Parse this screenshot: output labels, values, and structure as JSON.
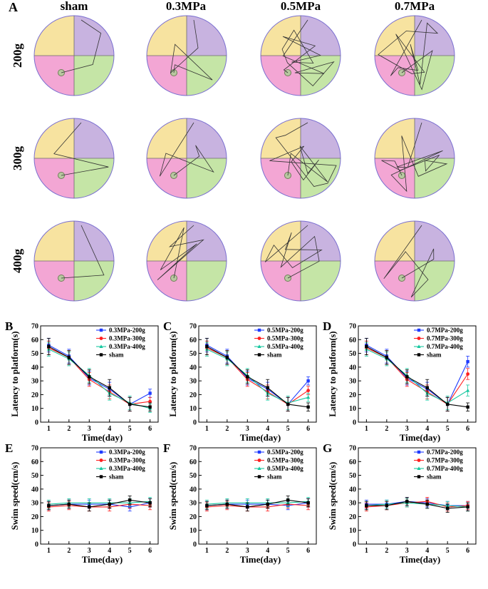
{
  "panel_a": {
    "letter": "A",
    "columns": [
      "sham",
      "0.3MPa",
      "0.5MPa",
      "0.7MPa"
    ],
    "rows": [
      "200g",
      "300g",
      "400g"
    ],
    "quadrant_colors": {
      "nw": "#f7e3a0",
      "ne": "#c8b3e0",
      "sw": "#f3a6d4",
      "se": "#c5e5a6"
    },
    "rim_color": "#7a6fd0"
  },
  "chart_data": [
    {
      "type": "line",
      "letter": "B",
      "ylabel": "Latency to platform(s)",
      "xlabel": "Time(day)",
      "x": [
        1,
        2,
        3,
        4,
        5,
        6
      ],
      "ylim": [
        0,
        70
      ],
      "yticks": [
        0,
        10,
        20,
        30,
        40,
        50,
        60,
        70
      ],
      "series": [
        {
          "name": "0.3MPa-200g",
          "color": "#1f3bff",
          "marker": "square",
          "values": [
            56,
            48,
            32,
            24,
            13,
            21
          ],
          "err": [
            5,
            5,
            5,
            5,
            5,
            3
          ]
        },
        {
          "name": "0.3MPa-300g",
          "color": "#ff1f1f",
          "marker": "circle",
          "values": [
            54,
            47,
            31,
            22,
            13,
            15
          ],
          "err": [
            5,
            5,
            5,
            5,
            5,
            3
          ]
        },
        {
          "name": "0.3MPa-400g",
          "color": "#18c8a0",
          "marker": "triangle",
          "values": [
            53,
            46,
            34,
            21,
            14,
            10
          ],
          "err": [
            5,
            5,
            5,
            5,
            5,
            3
          ]
        },
        {
          "name": "sham",
          "color": "#000000",
          "marker": "square",
          "values": [
            55,
            47,
            33,
            25,
            13,
            11
          ],
          "err": [
            6,
            5,
            5,
            6,
            5,
            3
          ]
        }
      ]
    },
    {
      "type": "line",
      "letter": "C",
      "ylabel": "Latency to platform(s)",
      "xlabel": "Time(day)",
      "x": [
        1,
        2,
        3,
        4,
        5,
        6
      ],
      "ylim": [
        0,
        70
      ],
      "yticks": [
        0,
        10,
        20,
        30,
        40,
        50,
        60,
        70
      ],
      "series": [
        {
          "name": "0.5MPa-200g",
          "color": "#1f3bff",
          "marker": "square",
          "values": [
            56,
            48,
            32,
            24,
            13,
            30
          ],
          "err": [
            5,
            5,
            5,
            5,
            5,
            3
          ]
        },
        {
          "name": "0.5MPa-300g",
          "color": "#ff1f1f",
          "marker": "circle",
          "values": [
            54,
            47,
            31,
            22,
            13,
            23
          ],
          "err": [
            5,
            5,
            5,
            5,
            5,
            3
          ]
        },
        {
          "name": "0.5MPa-400g",
          "color": "#18c8a0",
          "marker": "triangle",
          "values": [
            53,
            46,
            34,
            21,
            14,
            18
          ],
          "err": [
            5,
            5,
            5,
            5,
            5,
            3
          ]
        },
        {
          "name": "sham",
          "color": "#000000",
          "marker": "square",
          "values": [
            55,
            47,
            33,
            25,
            13,
            11
          ],
          "err": [
            6,
            5,
            5,
            6,
            5,
            3
          ]
        }
      ]
    },
    {
      "type": "line",
      "letter": "D",
      "ylabel": "Latency to platform(s)",
      "xlabel": "Time(day)",
      "x": [
        1,
        2,
        3,
        4,
        5,
        6
      ],
      "ylim": [
        0,
        70
      ],
      "yticks": [
        0,
        10,
        20,
        30,
        40,
        50,
        60,
        70
      ],
      "series": [
        {
          "name": "0.7MPa-200g",
          "color": "#1f3bff",
          "marker": "square",
          "values": [
            56,
            48,
            32,
            24,
            13,
            44
          ],
          "err": [
            5,
            5,
            5,
            5,
            5,
            4
          ]
        },
        {
          "name": "0.7MPa-300g",
          "color": "#ff1f1f",
          "marker": "circle",
          "values": [
            54,
            47,
            31,
            22,
            13,
            35
          ],
          "err": [
            5,
            5,
            5,
            5,
            5,
            4
          ]
        },
        {
          "name": "0.7MPa-400g",
          "color": "#18c8a0",
          "marker": "triangle",
          "values": [
            53,
            46,
            34,
            21,
            14,
            23
          ],
          "err": [
            5,
            5,
            5,
            5,
            5,
            4
          ]
        },
        {
          "name": "sham",
          "color": "#000000",
          "marker": "square",
          "values": [
            55,
            47,
            33,
            25,
            13,
            11
          ],
          "err": [
            6,
            5,
            5,
            6,
            5,
            3
          ]
        }
      ]
    },
    {
      "type": "line",
      "letter": "E",
      "ylabel": "Swim speed(cm/s)",
      "xlabel": "Time(day)",
      "x": [
        1,
        2,
        3,
        4,
        5,
        6
      ],
      "ylim": [
        0,
        70
      ],
      "yticks": [
        0,
        10,
        20,
        30,
        40,
        50,
        60,
        70
      ],
      "series": [
        {
          "name": "0.3MPa-200g",
          "color": "#1f3bff",
          "marker": "square",
          "values": [
            28,
            29,
            29,
            29,
            27,
            30
          ],
          "err": [
            3,
            3,
            3,
            3,
            3,
            3
          ]
        },
        {
          "name": "0.3MPa-300g",
          "color": "#ff1f1f",
          "marker": "circle",
          "values": [
            27,
            28,
            27,
            27,
            29,
            28
          ],
          "err": [
            3,
            3,
            3,
            3,
            3,
            3
          ]
        },
        {
          "name": "0.3MPa-400g",
          "color": "#18c8a0",
          "marker": "triangle",
          "values": [
            29,
            30,
            30,
            30,
            30,
            31
          ],
          "err": [
            3,
            3,
            3,
            3,
            3,
            3
          ]
        },
        {
          "name": "sham",
          "color": "#000000",
          "marker": "square",
          "values": [
            28,
            29,
            27,
            29,
            32,
            30
          ],
          "err": [
            3,
            3,
            3,
            3,
            3,
            3
          ]
        }
      ]
    },
    {
      "type": "line",
      "letter": "F",
      "ylabel": "Swim speed(cm/s)",
      "xlabel": "Time(day)",
      "x": [
        1,
        2,
        3,
        4,
        5,
        6
      ],
      "ylim": [
        0,
        70
      ],
      "yticks": [
        0,
        10,
        20,
        30,
        40,
        50,
        60,
        70
      ],
      "series": [
        {
          "name": "0.5MPa-200g",
          "color": "#1f3bff",
          "marker": "square",
          "values": [
            28,
            29,
            29,
            29,
            28,
            30
          ],
          "err": [
            3,
            3,
            3,
            3,
            3,
            3
          ]
        },
        {
          "name": "0.5MPa-300g",
          "color": "#ff1f1f",
          "marker": "circle",
          "values": [
            27,
            28,
            27,
            27,
            29,
            28
          ],
          "err": [
            3,
            3,
            3,
            3,
            3,
            3
          ]
        },
        {
          "name": "0.5MPa-400g",
          "color": "#18c8a0",
          "marker": "triangle",
          "values": [
            29,
            30,
            30,
            30,
            30,
            31
          ],
          "err": [
            3,
            3,
            3,
            3,
            3,
            3
          ]
        },
        {
          "name": "sham",
          "color": "#000000",
          "marker": "square",
          "values": [
            28,
            29,
            27,
            29,
            32,
            30
          ],
          "err": [
            3,
            3,
            3,
            3,
            3,
            3
          ]
        }
      ]
    },
    {
      "type": "line",
      "letter": "G",
      "ylabel": "Swim speed(cm/s)",
      "xlabel": "Time(day)",
      "x": [
        1,
        2,
        3,
        4,
        5,
        6
      ],
      "ylim": [
        0,
        70
      ],
      "yticks": [
        0,
        10,
        20,
        30,
        40,
        50,
        60,
        70
      ],
      "series": [
        {
          "name": "0.7MPa-200g",
          "color": "#1f3bff",
          "marker": "square",
          "values": [
            29,
            29,
            31,
            30,
            28,
            28
          ],
          "err": [
            3,
            3,
            3,
            3,
            3,
            3
          ]
        },
        {
          "name": "0.7MPa-300g",
          "color": "#ff1f1f",
          "marker": "circle",
          "values": [
            27,
            28,
            30,
            31,
            27,
            28
          ],
          "err": [
            3,
            3,
            3,
            3,
            3,
            3
          ]
        },
        {
          "name": "0.7MPa-400g",
          "color": "#18c8a0",
          "marker": "triangle",
          "values": [
            28,
            29,
            30,
            29,
            28,
            27
          ],
          "err": [
            3,
            3,
            3,
            3,
            3,
            3
          ]
        },
        {
          "name": "sham",
          "color": "#000000",
          "marker": "square",
          "values": [
            28,
            28,
            31,
            29,
            26,
            27
          ],
          "err": [
            3,
            3,
            3,
            3,
            3,
            3
          ]
        }
      ]
    }
  ]
}
